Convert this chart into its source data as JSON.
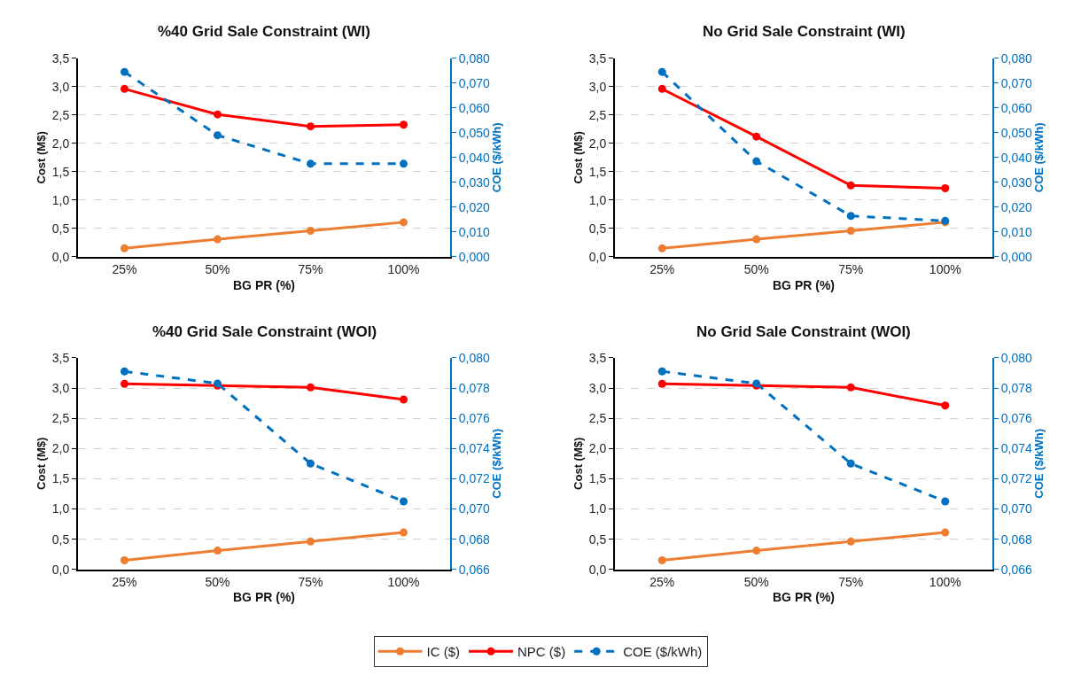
{
  "chart_data": [
    {
      "type": "line",
      "title": "%40 Grid Sale Constraint (WI)",
      "xlabel": "BG PR (%)",
      "ylabel": "Cost (M$)",
      "y2label": "COE ($/kWh)",
      "categories": [
        "25%",
        "50%",
        "75%",
        "100%"
      ],
      "legend": "bottom",
      "grid": "y",
      "marker": "circle",
      "ylim": [
        0,
        3.5
      ],
      "yticks": [
        {
          "value": 0,
          "label": "0,0"
        },
        {
          "value": 0.5,
          "label": "0,5"
        },
        {
          "value": 1,
          "label": "1,0"
        },
        {
          "value": 1.5,
          "label": "1,5"
        },
        {
          "value": 2,
          "label": "2,0"
        },
        {
          "value": 2.5,
          "label": "2,5"
        },
        {
          "value": 3,
          "label": "3,0"
        },
        {
          "value": 3.5,
          "label": "3,5"
        }
      ],
      "y2lim": [
        0,
        0.08
      ],
      "y2ticks": [
        {
          "value": 0,
          "label": "0,000"
        },
        {
          "value": 0.01,
          "label": "0,010"
        },
        {
          "value": 0.02,
          "label": "0,020"
        },
        {
          "value": 0.03,
          "label": "0,030"
        },
        {
          "value": 0.04,
          "label": "0,040"
        },
        {
          "value": 0.05,
          "label": "0,050"
        },
        {
          "value": 0.06,
          "label": "0,060"
        },
        {
          "value": 0.07,
          "label": "0,070"
        },
        {
          "value": 0.08,
          "label": "0,080"
        }
      ],
      "series": [
        {
          "name": "IC ($)",
          "color": "#ed7d31",
          "values": [
            0.15,
            0.31,
            0.46,
            0.61
          ],
          "line_style": "solid"
        },
        {
          "name": "NPC ($)",
          "color": "#ff0000",
          "values": [
            2.96,
            2.51,
            2.3,
            2.33
          ],
          "line_style": "solid"
        },
        {
          "name": "COE ($/kWh)",
          "color": "#0070c0",
          "values": [
            0.0745,
            0.049,
            0.0375,
            0.0375
          ],
          "axis": "y2",
          "line_style": "dashed"
        }
      ]
    },
    {
      "type": "line",
      "title": "No Grid Sale Constraint (WI)",
      "xlabel": "BG PR (%)",
      "ylabel": "Cost (M$)",
      "y2label": "COE ($/kWh)",
      "categories": [
        "25%",
        "50%",
        "75%",
        "100%"
      ],
      "grid": "y",
      "marker": "circle",
      "ylim": [
        0,
        3.5
      ],
      "yticks": [
        {
          "value": 0,
          "label": "0,0"
        },
        {
          "value": 0.5,
          "label": "0,5"
        },
        {
          "value": 1,
          "label": "1,0"
        },
        {
          "value": 1.5,
          "label": "1,5"
        },
        {
          "value": 2,
          "label": "2,0"
        },
        {
          "value": 2.5,
          "label": "2,5"
        },
        {
          "value": 3,
          "label": "3,0"
        },
        {
          "value": 3.5,
          "label": "3,5"
        }
      ],
      "y2lim": [
        0,
        0.08
      ],
      "y2ticks": [
        {
          "value": 0,
          "label": "0,000"
        },
        {
          "value": 0.01,
          "label": "0,010"
        },
        {
          "value": 0.02,
          "label": "0,020"
        },
        {
          "value": 0.03,
          "label": "0,030"
        },
        {
          "value": 0.04,
          "label": "0,040"
        },
        {
          "value": 0.05,
          "label": "0,050"
        },
        {
          "value": 0.06,
          "label": "0,060"
        },
        {
          "value": 0.07,
          "label": "0,070"
        },
        {
          "value": 0.08,
          "label": "0,080"
        }
      ],
      "series": [
        {
          "color": "#ed7d31",
          "values": [
            0.15,
            0.31,
            0.46,
            0.61
          ],
          "line_style": "solid"
        },
        {
          "color": "#ff0000",
          "values": [
            2.96,
            2.12,
            1.26,
            1.21
          ],
          "line_style": "solid"
        },
        {
          "color": "#0070c0",
          "values": [
            0.0745,
            0.0385,
            0.0165,
            0.0145
          ],
          "axis": "y2",
          "line_style": "dashed"
        }
      ]
    },
    {
      "type": "line",
      "title": "%40 Grid Sale Constraint (WOI)",
      "xlabel": "BG PR (%)",
      "ylabel": "Cost (M$)",
      "y2label": "COE ($/kWh)",
      "categories": [
        "25%",
        "50%",
        "75%",
        "100%"
      ],
      "grid": "y",
      "marker": "circle",
      "ylim": [
        0,
        3.5
      ],
      "yticks": [
        {
          "value": 0,
          "label": "0,0"
        },
        {
          "value": 0.5,
          "label": "0,5"
        },
        {
          "value": 1,
          "label": "1,0"
        },
        {
          "value": 1.5,
          "label": "1,5"
        },
        {
          "value": 2,
          "label": "2,0"
        },
        {
          "value": 2.5,
          "label": "2,5"
        },
        {
          "value": 3,
          "label": "3,0"
        },
        {
          "value": 3.5,
          "label": "3,5"
        }
      ],
      "y2lim": [
        0.066,
        0.08
      ],
      "y2ticks": [
        {
          "value": 0.066,
          "label": "0,066"
        },
        {
          "value": 0.068,
          "label": "0,068"
        },
        {
          "value": 0.07,
          "label": "0,070"
        },
        {
          "value": 0.072,
          "label": "0,072"
        },
        {
          "value": 0.074,
          "label": "0,074"
        },
        {
          "value": 0.076,
          "label": "0,076"
        },
        {
          "value": 0.078,
          "label": "0,078"
        },
        {
          "value": 0.08,
          "label": "0,080"
        }
      ],
      "series": [
        {
          "color": "#ed7d31",
          "values": [
            0.15,
            0.31,
            0.46,
            0.61
          ],
          "line_style": "solid"
        },
        {
          "color": "#ff0000",
          "values": [
            3.07,
            3.04,
            3.01,
            2.81
          ],
          "line_style": "solid"
        },
        {
          "color": "#0070c0",
          "values": [
            0.0791,
            0.0783,
            0.073,
            0.0705
          ],
          "axis": "y2",
          "line_style": "dashed"
        }
      ]
    },
    {
      "type": "line",
      "title": "No Grid Sale Constraint (WOI)",
      "xlabel": "BG PR (%)",
      "ylabel": "Cost (M$)",
      "y2label": "COE ($/kWh)",
      "categories": [
        "25%",
        "50%",
        "75%",
        "100%"
      ],
      "grid": "y",
      "marker": "circle",
      "ylim": [
        0,
        3.5
      ],
      "yticks": [
        {
          "value": 0,
          "label": "0,0"
        },
        {
          "value": 0.5,
          "label": "0,5"
        },
        {
          "value": 1,
          "label": "1,0"
        },
        {
          "value": 1.5,
          "label": "1,5"
        },
        {
          "value": 2,
          "label": "2,0"
        },
        {
          "value": 2.5,
          "label": "2,5"
        },
        {
          "value": 3,
          "label": "3,0"
        },
        {
          "value": 3.5,
          "label": "3,5"
        }
      ],
      "y2lim": [
        0.066,
        0.08
      ],
      "y2ticks": [
        {
          "value": 0.066,
          "label": "0,066"
        },
        {
          "value": 0.068,
          "label": "0,068"
        },
        {
          "value": 0.07,
          "label": "0,070"
        },
        {
          "value": 0.072,
          "label": "0,072"
        },
        {
          "value": 0.074,
          "label": "0,074"
        },
        {
          "value": 0.076,
          "label": "0,076"
        },
        {
          "value": 0.078,
          "label": "0,078"
        },
        {
          "value": 0.08,
          "label": "0,080"
        }
      ],
      "series": [
        {
          "color": "#ed7d31",
          "values": [
            0.15,
            0.31,
            0.46,
            0.61
          ],
          "line_style": "solid"
        },
        {
          "color": "#ff0000",
          "values": [
            3.07,
            3.04,
            3.01,
            2.71
          ],
          "line_style": "solid"
        },
        {
          "color": "#0070c0",
          "values": [
            0.0791,
            0.0783,
            0.073,
            0.0705
          ],
          "axis": "y2",
          "line_style": "dashed"
        }
      ]
    }
  ]
}
